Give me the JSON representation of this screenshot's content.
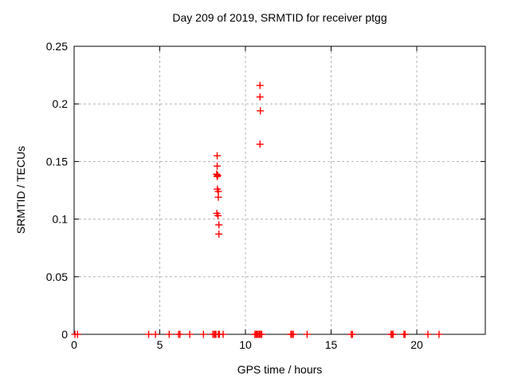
{
  "page": {
    "background_color": "#ffffff",
    "text_color": "#000000"
  },
  "chart_data": {
    "type": "scatter",
    "title": "Day 209 of 2019, SRMTID for receiver ptgg",
    "xlabel": "GPS time / hours",
    "ylabel": "SRMTID / TECUs",
    "xlim": [
      0,
      24
    ],
    "ylim": [
      0,
      0.25
    ],
    "xticks": {
      "values": [
        0,
        5,
        10,
        15,
        20
      ],
      "labels": [
        "0",
        "5",
        "10",
        "15",
        "20"
      ]
    },
    "yticks": {
      "values": [
        0,
        0.05,
        0.1,
        0.15,
        0.2,
        0.25
      ],
      "labels": [
        "0",
        "0.05",
        "0.1",
        "0.15",
        "0.2",
        "0.25"
      ]
    },
    "grid": true,
    "legend": false,
    "grid_color": "#b4b4b4",
    "border_color": "#000000",
    "marker": {
      "shape": "plus",
      "color": "#ff0000",
      "size": 9
    },
    "series": [
      {
        "name": "SRMTID",
        "points": [
          [
            8.35,
            0.155
          ],
          [
            8.35,
            0.146
          ],
          [
            8.32,
            0.139
          ],
          [
            8.38,
            0.138
          ],
          [
            8.35,
            0.137
          ],
          [
            8.36,
            0.126
          ],
          [
            8.42,
            0.124
          ],
          [
            8.42,
            0.119
          ],
          [
            8.33,
            0.105
          ],
          [
            8.4,
            0.103
          ],
          [
            8.45,
            0.095
          ],
          [
            8.45,
            0.087
          ],
          [
            10.85,
            0.216
          ],
          [
            10.85,
            0.206
          ],
          [
            10.87,
            0.194
          ],
          [
            10.85,
            0.165
          ],
          [
            0.05,
            0
          ],
          [
            0.2,
            0
          ],
          [
            4.35,
            0
          ],
          [
            4.75,
            0
          ],
          [
            5.55,
            0
          ],
          [
            6.1,
            0
          ],
          [
            6.18,
            0
          ],
          [
            6.75,
            0
          ],
          [
            7.55,
            0
          ],
          [
            8.1,
            0
          ],
          [
            8.18,
            0
          ],
          [
            8.22,
            0
          ],
          [
            8.28,
            0
          ],
          [
            8.42,
            0
          ],
          [
            8.48,
            0
          ],
          [
            8.7,
            0
          ],
          [
            10.55,
            0
          ],
          [
            10.62,
            0
          ],
          [
            10.68,
            0
          ],
          [
            10.75,
            0
          ],
          [
            10.82,
            0
          ],
          [
            10.88,
            0
          ],
          [
            10.95,
            0
          ],
          [
            12.65,
            0
          ],
          [
            12.72,
            0
          ],
          [
            12.8,
            0
          ],
          [
            13.6,
            0
          ],
          [
            16.18,
            0
          ],
          [
            16.25,
            0
          ],
          [
            18.5,
            0
          ],
          [
            18.56,
            0
          ],
          [
            18.62,
            0
          ],
          [
            19.25,
            0
          ],
          [
            19.32,
            0
          ],
          [
            20.65,
            0
          ],
          [
            21.3,
            0
          ]
        ]
      }
    ]
  }
}
